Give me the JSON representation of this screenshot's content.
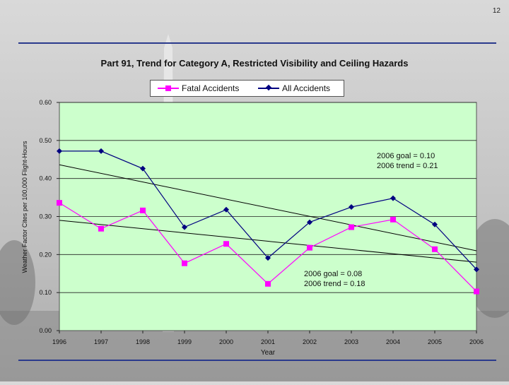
{
  "page": {
    "number": "12"
  },
  "colors": {
    "plot_bg": "#ccffcc",
    "fatal": "#ff00ff",
    "all": "#000080",
    "trend": "#000000",
    "rule": "#2a3a8c"
  },
  "chart_data": {
    "type": "line",
    "title": "Part 91, Trend for Category A, Restricted Visibility and Ceiling Hazards",
    "xlabel": "Year",
    "ylabel": "Weather Factor Cites per 100,000 Flight-Hours",
    "categories": [
      "1996",
      "1997",
      "1998",
      "1999",
      "2000",
      "2001",
      "2002",
      "2003",
      "2004",
      "2005",
      "2006"
    ],
    "yticks": [
      "0.00",
      "0.10",
      "0.20",
      "0.30",
      "0.40",
      "0.50",
      "0.60"
    ],
    "ylim": [
      0,
      0.6
    ],
    "grid": "horizontal",
    "legend_position": "top",
    "series": [
      {
        "name": "Fatal Accidents",
        "marker": "square",
        "color": "#ff00ff",
        "values": [
          0.336,
          0.268,
          0.316,
          0.177,
          0.228,
          0.123,
          0.218,
          0.272,
          0.292,
          0.214,
          0.103
        ]
      },
      {
        "name": "All Accidents",
        "marker": "diamond",
        "color": "#000080",
        "values": [
          0.472,
          0.472,
          0.426,
          0.272,
          0.318,
          0.191,
          0.285,
          0.325,
          0.348,
          0.279,
          0.161
        ]
      }
    ],
    "trendlines": [
      {
        "series": "All Accidents",
        "start": 0.436,
        "end": 0.21
      },
      {
        "series": "Fatal Accidents",
        "start": 0.29,
        "end": 0.18
      }
    ],
    "annotations": [
      {
        "id": "all",
        "lines": [
          "2006 goal = 0.10",
          "2006 trend = 0.21"
        ]
      },
      {
        "id": "fatal",
        "lines": [
          "2006 goal = 0.08",
          "2006 trend = 0.18"
        ]
      }
    ]
  }
}
